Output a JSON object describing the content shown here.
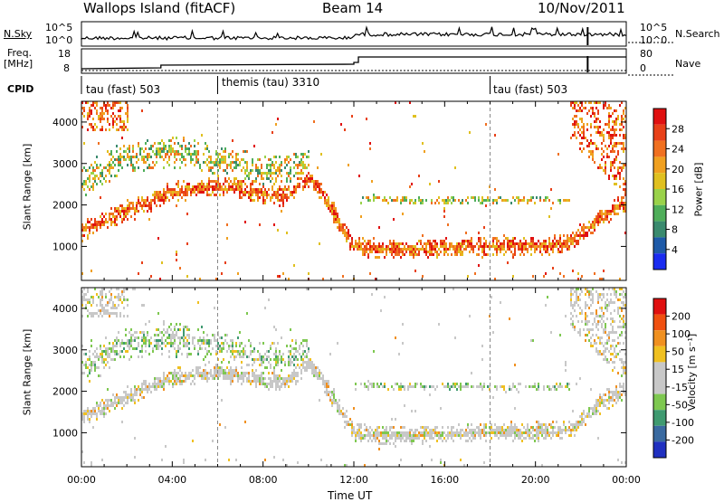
{
  "header": {
    "station": "Wallops Island (fitACF)",
    "beam": "Beam 14",
    "date": "10/Nov/2011"
  },
  "panels": {
    "nsky_label": "N.Sky",
    "nsky_ticks": [
      "10^5",
      "10^0"
    ],
    "nsearch_label": "N.Search",
    "nsearch_ticks": [
      "10^5",
      "10^0"
    ],
    "freq_label": "Freq.",
    "freq_unit": "[MHz]",
    "freq_ticks": [
      "18",
      "8"
    ],
    "nave_label": "Nave",
    "nave_ticks": [
      "80",
      "0"
    ],
    "cpid_label": "CPID",
    "cpid_segments": [
      {
        "label": "tau (fast) 503",
        "start_h": 0,
        "end_h": 6
      },
      {
        "label": "themis (tau) 3310",
        "start_h": 6,
        "end_h": 18
      },
      {
        "label": "tau (fast) 503",
        "start_h": 18,
        "end_h": 24
      }
    ]
  },
  "chart_data": [
    {
      "type": "heatmap",
      "title": "",
      "quantity": "power",
      "xlabel": "",
      "ylabel": "Slant Range [km]",
      "xlim_hours": [
        0,
        24
      ],
      "ylim": [
        180,
        4500
      ],
      "yticks": [
        1000,
        2000,
        3000,
        4000
      ],
      "colorbar_label": "Power [dB]",
      "colorbar_ticks": [
        "28",
        "24",
        "20",
        "16",
        "12",
        "8",
        "4"
      ],
      "colorbar_colors": [
        "#1a2cf0",
        "#1e5aa8",
        "#3a8a6e",
        "#4fae5a",
        "#9ad24a",
        "#e0c020",
        "#f0a020",
        "#f07020",
        "#e84018",
        "#e01010"
      ],
      "echo_bands_km": [
        {
          "name": "main",
          "points": [
            [
              0,
              1400
            ],
            [
              2,
              1900
            ],
            [
              4,
              2350
            ],
            [
              6,
              2500
            ],
            [
              8,
              2300
            ],
            [
              9,
              2250
            ],
            [
              10,
              2700
            ],
            [
              10.6,
              2300
            ],
            [
              12,
              1000
            ],
            [
              14,
              950
            ],
            [
              16,
              1000
            ],
            [
              18,
              1050
            ],
            [
              20,
              1050
            ],
            [
              21.5,
              1100
            ],
            [
              23,
              1800
            ],
            [
              24,
              2100
            ]
          ]
        },
        {
          "name": "upper",
          "points": [
            [
              0,
              2600
            ],
            [
              2,
              3200
            ],
            [
              4,
              3300
            ],
            [
              6,
              3100
            ],
            [
              8,
              2800
            ],
            [
              10,
              3000
            ]
          ]
        },
        {
          "name": "far",
          "points": [
            [
              12.2,
              2200
            ],
            [
              14,
              2150
            ],
            [
              16,
              2150
            ],
            [
              18,
              2150
            ],
            [
              20,
              2150
            ],
            [
              21.5,
              2150
            ]
          ]
        }
      ]
    },
    {
      "type": "heatmap",
      "title": "",
      "quantity": "velocity",
      "xlabel": "Time UT",
      "ylabel": "Slant Range [km]",
      "xlim_hours": [
        0,
        24
      ],
      "xticks": [
        "00:00",
        "04:00",
        "08:00",
        "12:00",
        "16:00",
        "20:00",
        "00:00"
      ],
      "ylim": [
        180,
        4500
      ],
      "yticks": [
        1000,
        2000,
        3000,
        4000
      ],
      "colorbar_label": "Velocity [m s⁻¹]",
      "colorbar_ticks": [
        "200",
        "100",
        "50",
        "15",
        "-15",
        "-50",
        "-100",
        "-200"
      ],
      "colorbar_colors": [
        "#2030c0",
        "#3a6aa0",
        "#3f9a70",
        "#7ec850",
        "#c8c8c8",
        "#c8c8c8",
        "#f0c020",
        "#f09020",
        "#f05010",
        "#e01010"
      ]
    }
  ]
}
